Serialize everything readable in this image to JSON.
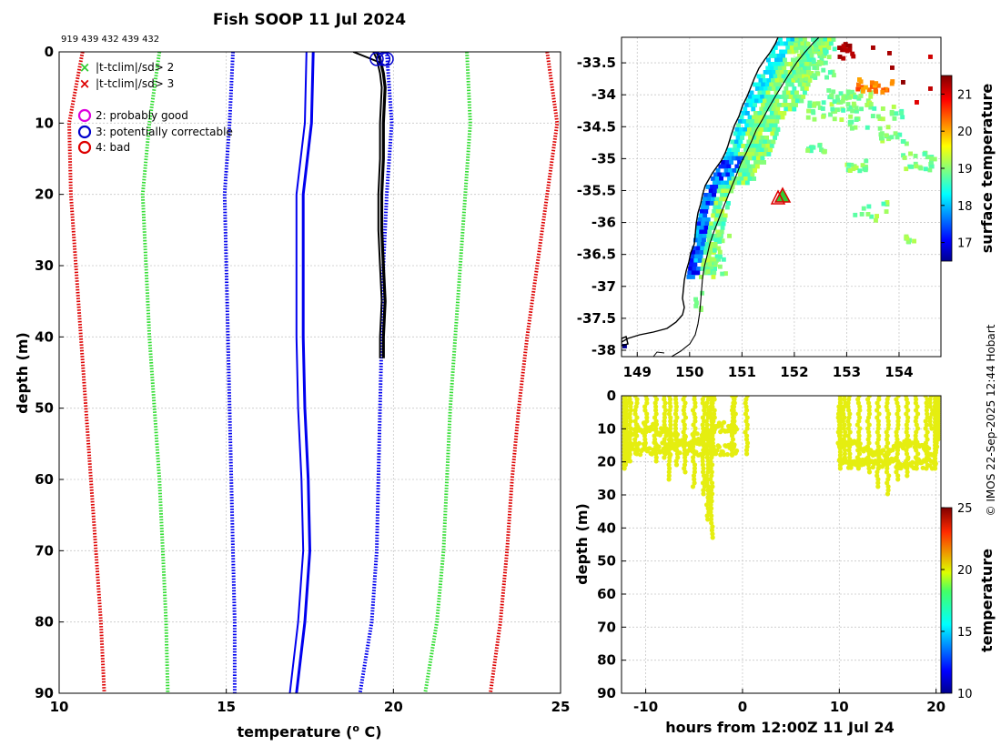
{
  "header": {
    "title": "Fish SOOP 11 Jul 2024",
    "probe_ids": "919 439 432 439 432"
  },
  "legend": {
    "items": [
      {
        "symbol": "×",
        "label": "|t-tclim|/sd> 2",
        "color": "#33cc33"
      },
      {
        "symbol": "×",
        "label": "|t-tclim|/sd> 3",
        "color": "#dd0000"
      },
      {
        "symbol": "○",
        "label": "2: probably good",
        "color": "#dd00dd"
      },
      {
        "symbol": "○",
        "label": "3: potentially correctable",
        "color": "#0000cc"
      },
      {
        "symbol": "○",
        "label": "4: bad",
        "color": "#dd0000"
      }
    ]
  },
  "copyright": "© IMOS 22-Sep-2025 12:44 Hobart",
  "colors": {
    "red": "#dd0000",
    "green": "#33dd33",
    "blue": "#0000ee",
    "black": "#000000",
    "yellow": "#e5ee10"
  },
  "chart_data": [
    {
      "type": "line",
      "name": "profile-plot",
      "xlabel": "temperature (o C)",
      "ylabel": "depth (m)",
      "xlim": [
        10,
        25
      ],
      "ylim": [
        90,
        0
      ],
      "xticks": [
        10,
        15,
        20,
        25
      ],
      "yticks": [
        0,
        10,
        20,
        30,
        40,
        50,
        60,
        70,
        80,
        90
      ],
      "series": [
        {
          "name": "clim-3sd-low",
          "color": "#dd0000",
          "style": "dotted",
          "depth": [
            0,
            10,
            20,
            30,
            40,
            50,
            60,
            70,
            80,
            90
          ],
          "temp": [
            10.7,
            10.3,
            10.35,
            10.5,
            10.65,
            10.8,
            10.95,
            11.1,
            11.25,
            11.35
          ]
        },
        {
          "name": "clim-2sd-low",
          "color": "#33dd33",
          "style": "dotted",
          "depth": [
            0,
            10,
            20,
            30,
            40,
            50,
            60,
            70,
            80,
            90
          ],
          "temp": [
            13.0,
            12.7,
            12.5,
            12.6,
            12.7,
            12.85,
            13.0,
            13.1,
            13.2,
            13.25
          ]
        },
        {
          "name": "clim-mean-low",
          "color": "#0000ee",
          "style": "dotted",
          "depth": [
            0,
            10,
            20,
            30,
            40,
            50,
            60,
            70,
            80,
            90
          ],
          "temp": [
            15.2,
            15.1,
            14.95,
            15.0,
            15.05,
            15.1,
            15.15,
            15.2,
            15.25,
            15.25
          ]
        },
        {
          "name": "clim-mean-high",
          "color": "#0000ee",
          "style": "dotted",
          "depth": [
            0,
            10,
            20,
            30,
            40,
            50,
            60,
            70,
            80,
            90
          ],
          "temp": [
            19.8,
            19.95,
            19.8,
            19.7,
            19.65,
            19.6,
            19.55,
            19.5,
            19.35,
            19.0
          ]
        },
        {
          "name": "clim-2sd-high",
          "color": "#33dd33",
          "style": "dotted",
          "depth": [
            0,
            10,
            20,
            30,
            40,
            50,
            60,
            70,
            80,
            90
          ],
          "temp": [
            22.2,
            22.3,
            22.15,
            22.0,
            21.85,
            21.7,
            21.6,
            21.5,
            21.3,
            20.95
          ]
        },
        {
          "name": "clim-3sd-high",
          "color": "#dd0000",
          "style": "dotted",
          "depth": [
            0,
            10,
            20,
            30,
            40,
            50,
            60,
            70,
            80,
            90
          ],
          "temp": [
            24.6,
            24.9,
            24.6,
            24.3,
            24.0,
            23.75,
            23.55,
            23.4,
            23.2,
            22.9
          ]
        },
        {
          "name": "mean-profile",
          "color": "#0000ee",
          "style": "solid-thick",
          "depth": [
            0,
            10,
            20,
            30,
            40,
            50,
            60,
            70,
            80,
            90
          ],
          "temp": [
            17.6,
            17.55,
            17.3,
            17.3,
            17.3,
            17.35,
            17.45,
            17.5,
            17.35,
            17.1
          ]
        },
        {
          "name": "observed-profile",
          "color": "#000000",
          "style": "solid-thick",
          "depth": [
            0,
            1,
            3,
            5,
            10,
            15,
            20,
            25,
            30,
            35,
            40,
            43
          ],
          "temp": [
            19.5,
            19.6,
            19.7,
            19.75,
            19.7,
            19.7,
            19.65,
            19.65,
            19.7,
            19.75,
            19.7,
            19.7
          ]
        }
      ]
    },
    {
      "type": "heatmap",
      "name": "sst-map",
      "xticks": [
        149,
        150,
        151,
        152,
        153,
        154
      ],
      "yticks": [
        -33.5,
        -34,
        -34.5,
        -35,
        -35.5,
        -36,
        -36.5,
        -37,
        -37.5,
        -38
      ],
      "xlim": [
        148.7,
        154.8
      ],
      "ylim": [
        -38.1,
        -33.1
      ],
      "colorbar_label": "surface temperature",
      "colorbar_ticks": [
        17,
        18,
        19,
        20,
        21
      ],
      "colorbar_range": [
        16.5,
        21.5
      ],
      "marker": {
        "lon": 151.75,
        "lat": -35.6
      }
    },
    {
      "type": "scatter",
      "name": "time-depth",
      "xlabel": "hours from 12:00Z 11 Jul 24",
      "ylabel": "depth (m)",
      "xlim": [
        -12.5,
        20.5
      ],
      "ylim": [
        90,
        0
      ],
      "xticks": [
        -10,
        0,
        10,
        20
      ],
      "yticks": [
        0,
        10,
        20,
        30,
        40,
        50,
        60,
        70,
        80,
        90
      ],
      "colorbar_label": "temperature",
      "colorbar_ticks": [
        10,
        15,
        20,
        25
      ],
      "colorbar_range": [
        10,
        25
      ],
      "point_color": "#e5ee10"
    }
  ]
}
